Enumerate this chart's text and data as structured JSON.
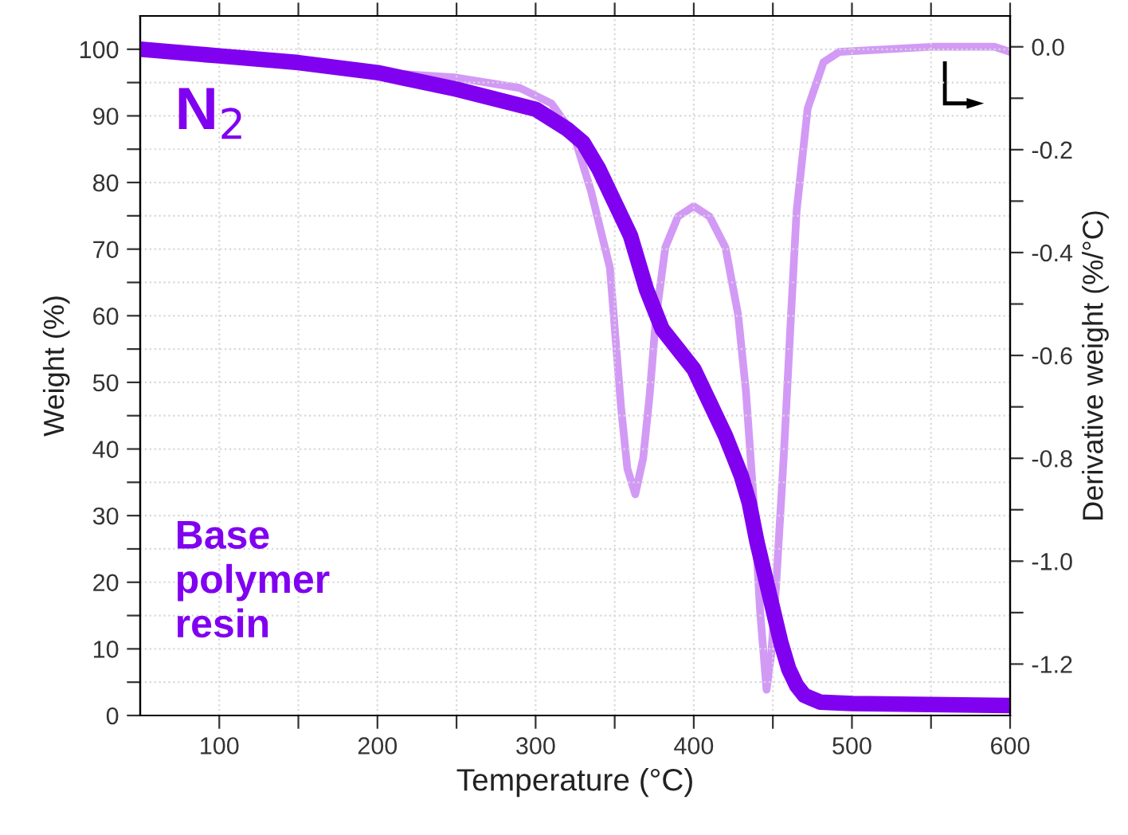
{
  "chart_data": {
    "type": "line",
    "xlabel": "Temperature (°C)",
    "ylabel": "Weight (%)",
    "y2label": "Derivative weight (%/°C)",
    "annotations": [
      "N$_{2}$",
      "Base\npolymer\nresin"
    ],
    "xlim": [
      50,
      600
    ],
    "xticks": [
      100,
      {
        "value": 150,
        "label": null
      },
      200,
      {
        "value": 250,
        "label": null
      },
      300,
      {
        "value": 350,
        "label": null
      },
      400,
      {
        "value": 450,
        "label": null
      },
      500,
      {
        "value": 550,
        "label": null
      },
      600
    ],
    "ylim": [
      0,
      105
    ],
    "yticks": [
      0,
      {
        "value": 5,
        "label": null
      },
      10,
      {
        "value": 15,
        "label": null
      },
      20,
      {
        "value": 25,
        "label": null
      },
      30,
      {
        "value": 35,
        "label": null
      },
      40,
      {
        "value": 45,
        "label": null
      },
      50,
      {
        "value": 55,
        "label": null
      },
      60,
      {
        "value": 65,
        "label": null
      },
      70,
      {
        "value": 75,
        "label": null
      },
      80,
      {
        "value": 85,
        "label": null
      },
      90,
      {
        "value": 95,
        "label": null
      },
      100
    ],
    "y2lim": [
      -1.3,
      0.06
    ],
    "y2ticks": [
      {
        "value": 0,
        "label": "0.0"
      },
      {
        "value": -0.1,
        "label": null
      },
      {
        "value": -0.2,
        "label": "-0.2"
      },
      {
        "value": -0.3,
        "label": null
      },
      {
        "value": -0.4,
        "label": "-0.4"
      },
      {
        "value": -0.5,
        "label": null
      },
      {
        "value": -0.6,
        "label": "-0.6"
      },
      {
        "value": -0.7,
        "label": null
      },
      {
        "value": -0.8,
        "label": "-0.8"
      },
      {
        "value": -0.9,
        "label": null
      },
      {
        "value": -1.0,
        "label": "-1.0"
      },
      {
        "value": -1.1,
        "label": null
      },
      {
        "value": -1.2,
        "label": "-1.2"
      }
    ],
    "grid": true,
    "marker": "none",
    "line_style": "solid",
    "series": [
      {
        "color": "#d29af5",
        "axis": "y2",
        "x": [
          50,
          100,
          150,
          200,
          250,
          290,
          310,
          324,
          335,
          347,
          354,
          358,
          363,
          368,
          372,
          376,
          382,
          390,
          400,
          410,
          420,
          428,
          433,
          438,
          442,
          446,
          449,
          452,
          457,
          461,
          465,
          472,
          482,
          492,
          550,
          590,
          600
        ],
        "values": [
          0.0,
          -0.02,
          -0.03,
          -0.05,
          -0.06,
          -0.08,
          -0.11,
          -0.17,
          -0.28,
          -0.43,
          -0.7,
          -0.82,
          -0.87,
          -0.8,
          -0.68,
          -0.53,
          -0.39,
          -0.33,
          -0.31,
          -0.33,
          -0.39,
          -0.52,
          -0.67,
          -0.89,
          -1.1,
          -1.25,
          -1.18,
          -1.05,
          -0.79,
          -0.55,
          -0.32,
          -0.12,
          -0.03,
          -0.01,
          0.0,
          0.0,
          -0.01
        ]
      },
      {
        "color": "#8000f0",
        "x": [
          50,
          100,
          150,
          200,
          250,
          300,
          320,
          330,
          340,
          350,
          360,
          370,
          380,
          390,
          400,
          410,
          420,
          430,
          435,
          440,
          445,
          450,
          455,
          460,
          465,
          470,
          480,
          500,
          600
        ],
        "values": [
          100,
          99,
          98,
          96.5,
          94,
          91,
          88,
          86,
          82,
          77,
          72,
          64,
          58,
          55,
          52,
          47,
          42,
          36,
          32,
          26,
          21,
          16,
          11,
          7,
          4.5,
          3,
          2,
          1.8,
          1.5
        ]
      }
    ]
  }
}
